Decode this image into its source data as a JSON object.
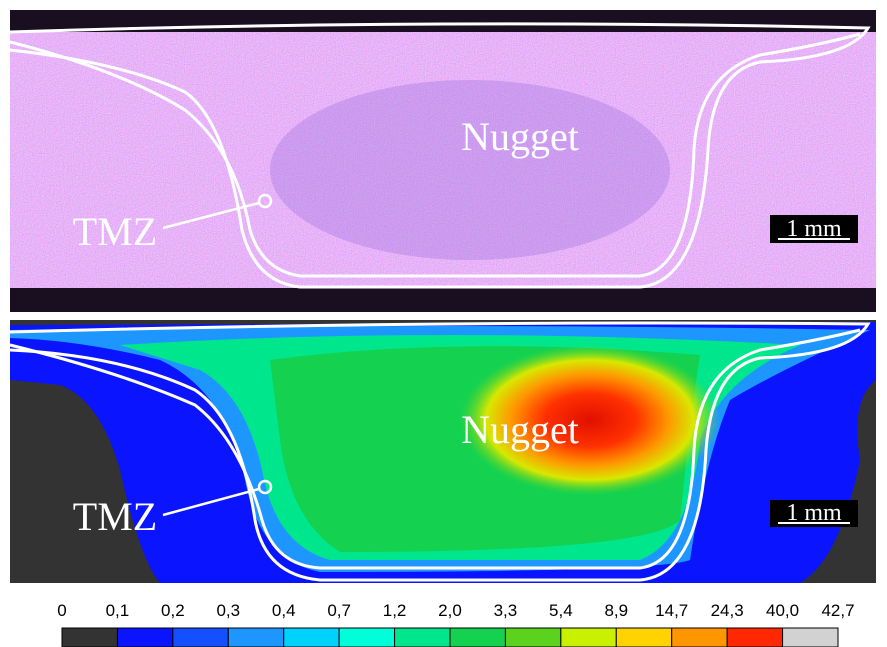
{
  "panels": [
    {
      "region_label": "Nugget",
      "zone_label": "TMZ",
      "scale_bar": "1 mm"
    },
    {
      "region_label": "Nugget",
      "zone_label": "TMZ",
      "scale_bar": "1 mm"
    }
  ],
  "colorbar": {
    "ticks": [
      "0",
      "0,1",
      "0,2",
      "0,3",
      "0,4",
      "0,7",
      "1,2",
      "2,0",
      "3,3",
      "5,4",
      "8,9",
      "14,7",
      "24,3",
      "40,0",
      "42,7"
    ],
    "colors": [
      "#333333",
      "#0a14ff",
      "#1450ff",
      "#1e96ff",
      "#00d2ff",
      "#00ffd8",
      "#00e68c",
      "#14d250",
      "#5ad21e",
      "#c8f000",
      "#ffd200",
      "#ff9600",
      "#ff2800",
      "#d2d2d2"
    ]
  }
}
